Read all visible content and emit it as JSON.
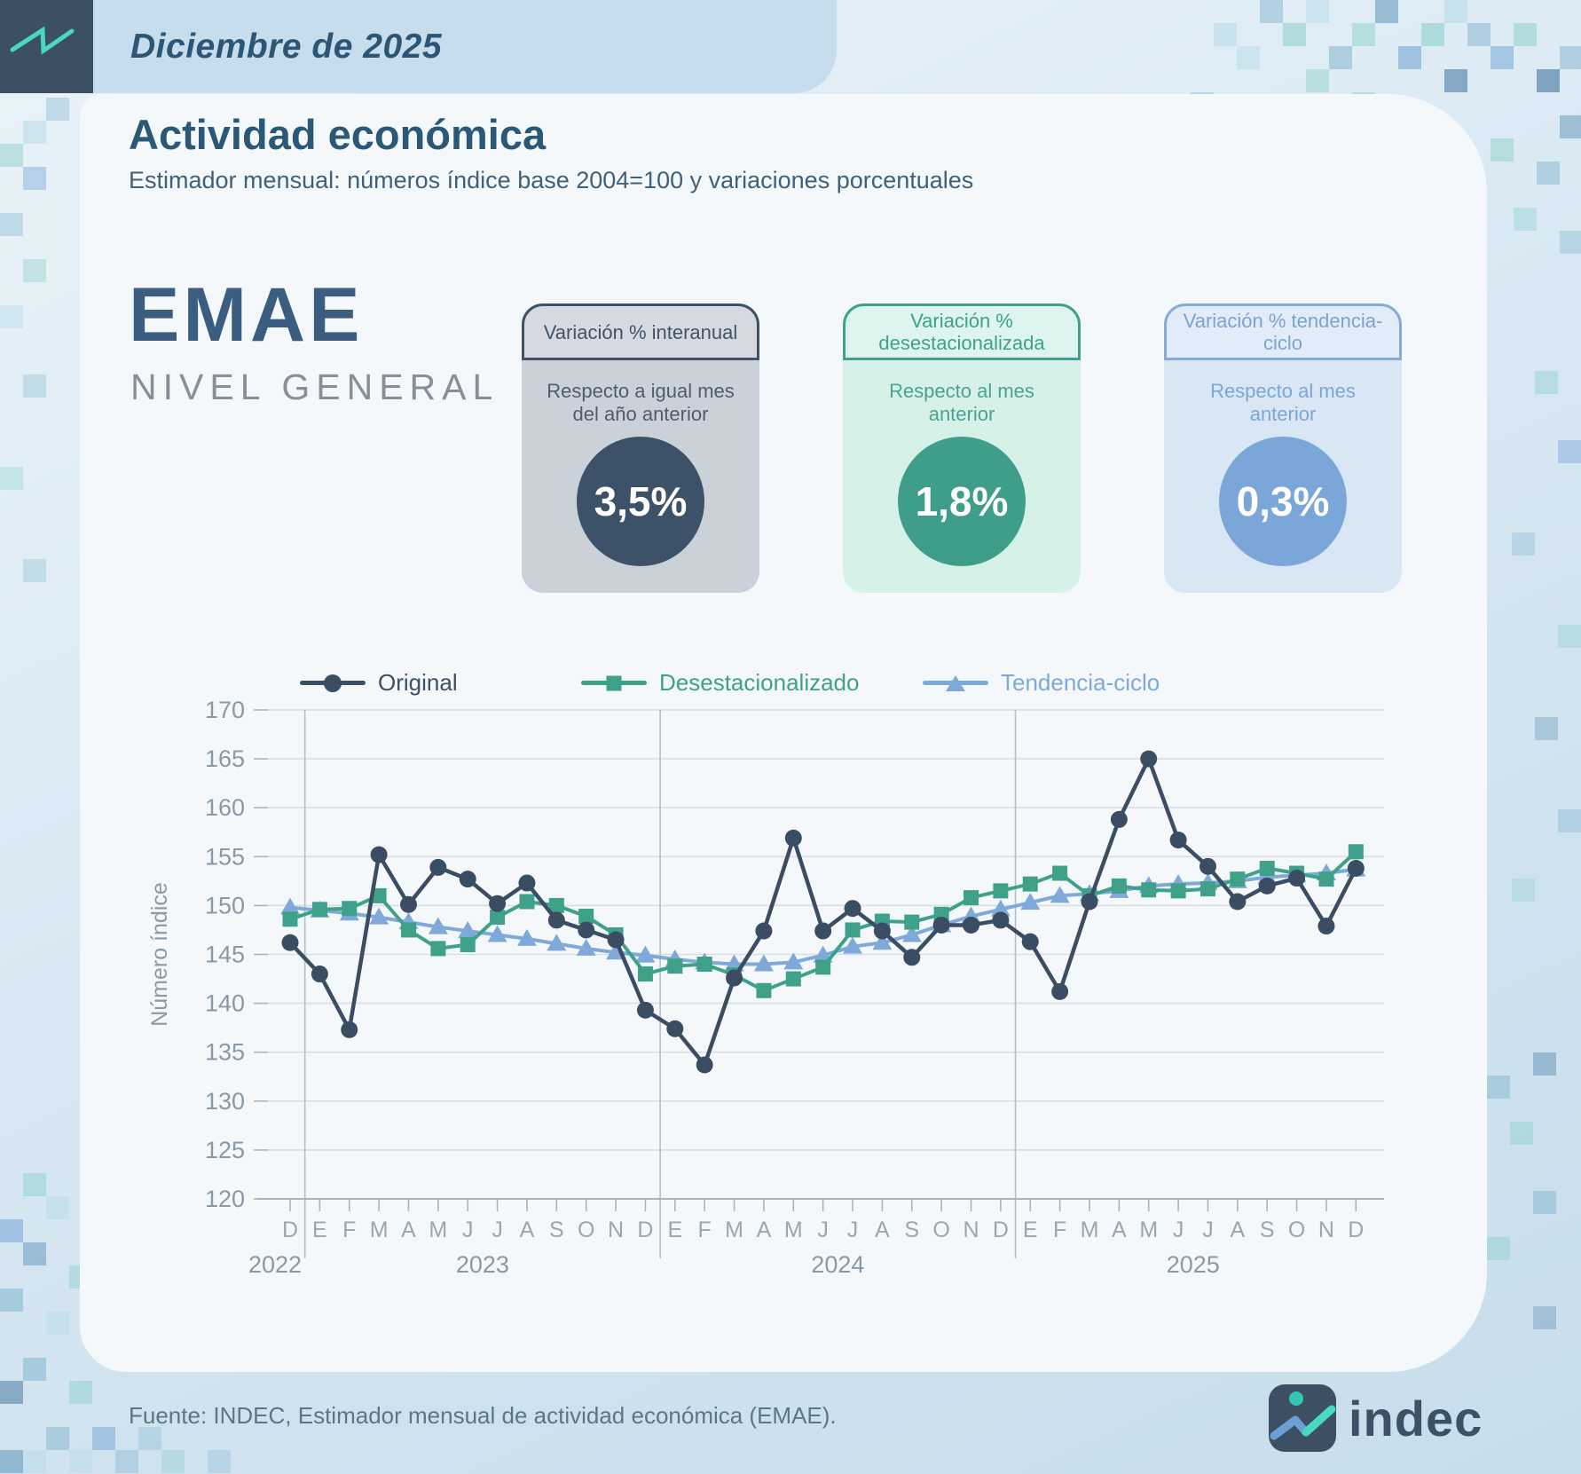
{
  "header": {
    "date_label": "Diciembre de 2025"
  },
  "page": {
    "title": "Actividad económica",
    "subtitle": "Estimador mensual: números índice base 2004=100 y variaciones porcentuales"
  },
  "emae": {
    "acronym": "EMAE",
    "level": "NIVEL GENERAL"
  },
  "stat_cards": [
    {
      "header": "Variación % interanual",
      "description": "Respecto a igual mes del año anterior",
      "value": "3,5%",
      "accent": "#3d5168"
    },
    {
      "header": "Variación % desestacionalizada",
      "description": "Respecto al mes anterior",
      "value": "1,8%",
      "accent": "#3fa189"
    },
    {
      "header": "Variación % tendencia-ciclo",
      "description": "Respecto al mes anterior",
      "value": "0,3%",
      "accent": "#7aa7d8"
    }
  ],
  "chart_data": {
    "type": "line",
    "title": "",
    "xlabel": "",
    "ylabel": "Número índice",
    "ylim": [
      120,
      170
    ],
    "ytick_step": 5,
    "grid": true,
    "legend_position": "top",
    "month_labels": [
      "D",
      "E",
      "F",
      "M",
      "A",
      "M",
      "J",
      "J",
      "A",
      "S",
      "O",
      "N",
      "D",
      "E",
      "F",
      "M",
      "A",
      "M",
      "J",
      "J",
      "A",
      "S",
      "O",
      "N",
      "D",
      "E",
      "F",
      "M",
      "A",
      "M",
      "J",
      "J",
      "A",
      "S",
      "O",
      "N",
      "D"
    ],
    "year_labels": [
      "2022",
      "2023",
      "2024",
      "2025"
    ],
    "series": [
      {
        "name": "Original",
        "color": "#3b4d63",
        "marker": "circle",
        "values": [
          146.2,
          143.0,
          137.3,
          155.2,
          150.1,
          153.9,
          152.7,
          150.2,
          152.3,
          148.5,
          147.5,
          146.5,
          139.3,
          137.4,
          133.7,
          142.6,
          147.4,
          156.9,
          147.4,
          149.7,
          147.4,
          144.7,
          148.0,
          148.0,
          148.5,
          146.3,
          141.2,
          150.4,
          158.8,
          165.0,
          156.7,
          154.0,
          150.4,
          152.0,
          152.8,
          147.9,
          153.8
        ]
      },
      {
        "name": "Desestacionalizado",
        "color": "#3fa189",
        "marker": "square",
        "values": [
          148.6,
          149.6,
          149.7,
          151.0,
          147.5,
          145.6,
          146.0,
          148.8,
          150.4,
          150.0,
          148.9,
          147.0,
          143.0,
          143.8,
          144.0,
          142.9,
          141.3,
          142.5,
          143.7,
          147.5,
          148.4,
          148.3,
          149.1,
          150.8,
          151.5,
          152.2,
          153.3,
          151.0,
          152.0,
          151.6,
          151.5,
          151.7,
          152.7,
          153.8,
          153.3,
          152.7,
          155.5
        ]
      },
      {
        "name": "Tendencia-ciclo",
        "color": "#7fa9d8",
        "marker": "triangle",
        "values": [
          149.8,
          149.5,
          149.2,
          148.8,
          148.3,
          147.8,
          147.4,
          147.0,
          146.6,
          146.1,
          145.6,
          145.2,
          144.9,
          144.5,
          144.2,
          144.0,
          144.0,
          144.2,
          144.9,
          145.8,
          146.2,
          147.0,
          148.0,
          148.9,
          149.6,
          150.3,
          151.0,
          151.2,
          151.5,
          152.0,
          152.2,
          152.3,
          152.5,
          152.9,
          153.1,
          153.3,
          153.7
        ]
      }
    ]
  },
  "footer": {
    "source": "Fuente: INDEC, Estimador mensual de actividad económica (EMAE).",
    "logo_text": "indec"
  }
}
